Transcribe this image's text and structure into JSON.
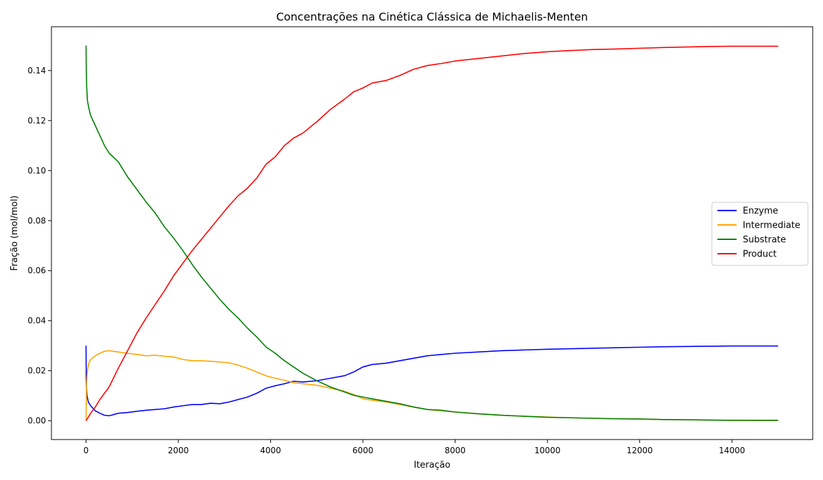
{
  "chart_data": {
    "type": "line",
    "title": "Concentrações na Cinética Clássica de Michaelis-Menten",
    "xlabel": "Iteração",
    "ylabel": "Fração (mol/mol)",
    "xlim": [
      -750,
      15750
    ],
    "ylim": [
      -0.0075,
      0.1575
    ],
    "xticks": [
      0,
      2000,
      4000,
      6000,
      8000,
      10000,
      12000,
      14000
    ],
    "xtick_labels": [
      "0",
      "2000",
      "4000",
      "6000",
      "8000",
      "10000",
      "12000",
      "14000"
    ],
    "yticks": [
      0.0,
      0.02,
      0.04,
      0.06,
      0.08,
      0.1,
      0.12,
      0.14
    ],
    "ytick_labels": [
      "0.00",
      "0.02",
      "0.04",
      "0.06",
      "0.08",
      "0.10",
      "0.12",
      "0.14"
    ],
    "grid": false,
    "legend_position": "center-right",
    "series": [
      {
        "name": "Enzyme",
        "color": "#0000ff",
        "x": [
          0,
          5,
          20,
          50,
          100,
          200,
          300,
          400,
          500,
          700,
          900,
          1100,
          1300,
          1500,
          1700,
          1900,
          2100,
          2300,
          2500,
          2700,
          2900,
          3100,
          3300,
          3500,
          3700,
          3900,
          4100,
          4300,
          4500,
          4700,
          5000,
          5300,
          5600,
          5800,
          6000,
          6200,
          6500,
          6800,
          7100,
          7400,
          7700,
          8000,
          8500,
          9000,
          9500,
          10000,
          10500,
          11000,
          11500,
          12000,
          12500,
          13000,
          13500,
          14000,
          15000
        ],
        "y": [
          0.03,
          0.015,
          0.01,
          0.0075,
          0.006,
          0.004,
          0.003,
          0.0022,
          0.002,
          0.003,
          0.0033,
          0.0038,
          0.0042,
          0.0045,
          0.0048,
          0.0055,
          0.006,
          0.0065,
          0.0065,
          0.007,
          0.0068,
          0.0075,
          0.0085,
          0.0095,
          0.011,
          0.013,
          0.014,
          0.0148,
          0.0158,
          0.0155,
          0.016,
          0.017,
          0.018,
          0.0195,
          0.0215,
          0.0225,
          0.023,
          0.024,
          0.025,
          0.026,
          0.0265,
          0.027,
          0.0275,
          0.028,
          0.0283,
          0.0286,
          0.0288,
          0.029,
          0.0292,
          0.0294,
          0.0296,
          0.0297,
          0.0298,
          0.0299,
          0.0299
        ]
      },
      {
        "name": "Intermediate",
        "color": "#ffa500",
        "x": [
          0,
          10,
          30,
          60,
          100,
          200,
          300,
          400,
          500,
          700,
          900,
          1100,
          1300,
          1500,
          1700,
          1900,
          2100,
          2300,
          2500,
          2700,
          2900,
          3100,
          3300,
          3500,
          3700,
          3900,
          4100,
          4300,
          4500,
          4700,
          5000,
          5300,
          5600,
          5800,
          6000,
          6200,
          6500,
          6800,
          7100,
          7400,
          7700,
          8000,
          8500,
          9000,
          9500,
          10000,
          10500,
          11000,
          11500,
          12000,
          12500,
          13000,
          13500,
          14000,
          15000
        ],
        "y": [
          0.0,
          0.015,
          0.02,
          0.023,
          0.0245,
          0.026,
          0.027,
          0.0278,
          0.028,
          0.0275,
          0.027,
          0.0265,
          0.026,
          0.0262,
          0.0258,
          0.0255,
          0.0245,
          0.024,
          0.024,
          0.0238,
          0.0235,
          0.0232,
          0.0222,
          0.021,
          0.0195,
          0.018,
          0.017,
          0.0162,
          0.0152,
          0.0148,
          0.0142,
          0.013,
          0.0118,
          0.0105,
          0.0088,
          0.0082,
          0.0075,
          0.0065,
          0.0055,
          0.0045,
          0.004,
          0.0035,
          0.0028,
          0.0022,
          0.0018,
          0.0015,
          0.0012,
          0.001,
          0.0008,
          0.0007,
          0.0005,
          0.0004,
          0.0003,
          0.0002,
          0.0001
        ]
      },
      {
        "name": "Substrate",
        "color": "#008000",
        "x": [
          0,
          5,
          15,
          30,
          60,
          100,
          200,
          300,
          400,
          500,
          700,
          900,
          1100,
          1300,
          1500,
          1700,
          1900,
          2100,
          2300,
          2500,
          2700,
          2900,
          3100,
          3300,
          3500,
          3700,
          3900,
          4100,
          4300,
          4500,
          4700,
          5000,
          5300,
          5600,
          5800,
          6000,
          6200,
          6500,
          6800,
          7100,
          7400,
          7700,
          8000,
          8500,
          9000,
          9500,
          10000,
          10500,
          11000,
          11500,
          12000,
          12500,
          13000,
          13500,
          14000,
          15000
        ],
        "y": [
          0.15,
          0.14,
          0.133,
          0.128,
          0.125,
          0.122,
          0.118,
          0.114,
          0.11,
          0.107,
          0.1035,
          0.0975,
          0.0925,
          0.0875,
          0.083,
          0.0775,
          0.073,
          0.068,
          0.0625,
          0.0575,
          0.053,
          0.0485,
          0.0445,
          0.041,
          0.037,
          0.0335,
          0.0295,
          0.027,
          0.024,
          0.0215,
          0.019,
          0.016,
          0.0135,
          0.0115,
          0.0102,
          0.0095,
          0.0088,
          0.0078,
          0.0068,
          0.0055,
          0.0045,
          0.0042,
          0.0035,
          0.0028,
          0.0022,
          0.0018,
          0.0014,
          0.0012,
          0.001,
          0.0008,
          0.0007,
          0.0005,
          0.0004,
          0.0003,
          0.0002,
          0.0002
        ]
      },
      {
        "name": "Product",
        "color": "#ff0000",
        "x": [
          0,
          50,
          100,
          200,
          300,
          400,
          500,
          700,
          900,
          1100,
          1300,
          1500,
          1700,
          1900,
          2100,
          2300,
          2500,
          2700,
          2900,
          3100,
          3300,
          3500,
          3700,
          3900,
          4100,
          4300,
          4500,
          4700,
          5000,
          5300,
          5600,
          5800,
          6000,
          6200,
          6500,
          6800,
          7100,
          7400,
          7700,
          8000,
          8500,
          9000,
          9500,
          10000,
          10500,
          11000,
          11500,
          12000,
          12500,
          13000,
          13500,
          14000,
          15000
        ],
        "y": [
          0.0,
          0.0015,
          0.003,
          0.0055,
          0.0085,
          0.011,
          0.0135,
          0.021,
          0.028,
          0.035,
          0.041,
          0.0465,
          0.052,
          0.058,
          0.063,
          0.068,
          0.0725,
          0.077,
          0.0815,
          0.086,
          0.09,
          0.093,
          0.097,
          0.1025,
          0.1055,
          0.11,
          0.113,
          0.115,
          0.1195,
          0.1245,
          0.1285,
          0.1315,
          0.133,
          0.135,
          0.136,
          0.138,
          0.1405,
          0.142,
          0.1428,
          0.1438,
          0.1448,
          0.1458,
          0.1468,
          0.1475,
          0.148,
          0.1484,
          0.1486,
          0.1489,
          0.1492,
          0.1494,
          0.1496,
          0.1497,
          0.1497
        ]
      }
    ]
  }
}
